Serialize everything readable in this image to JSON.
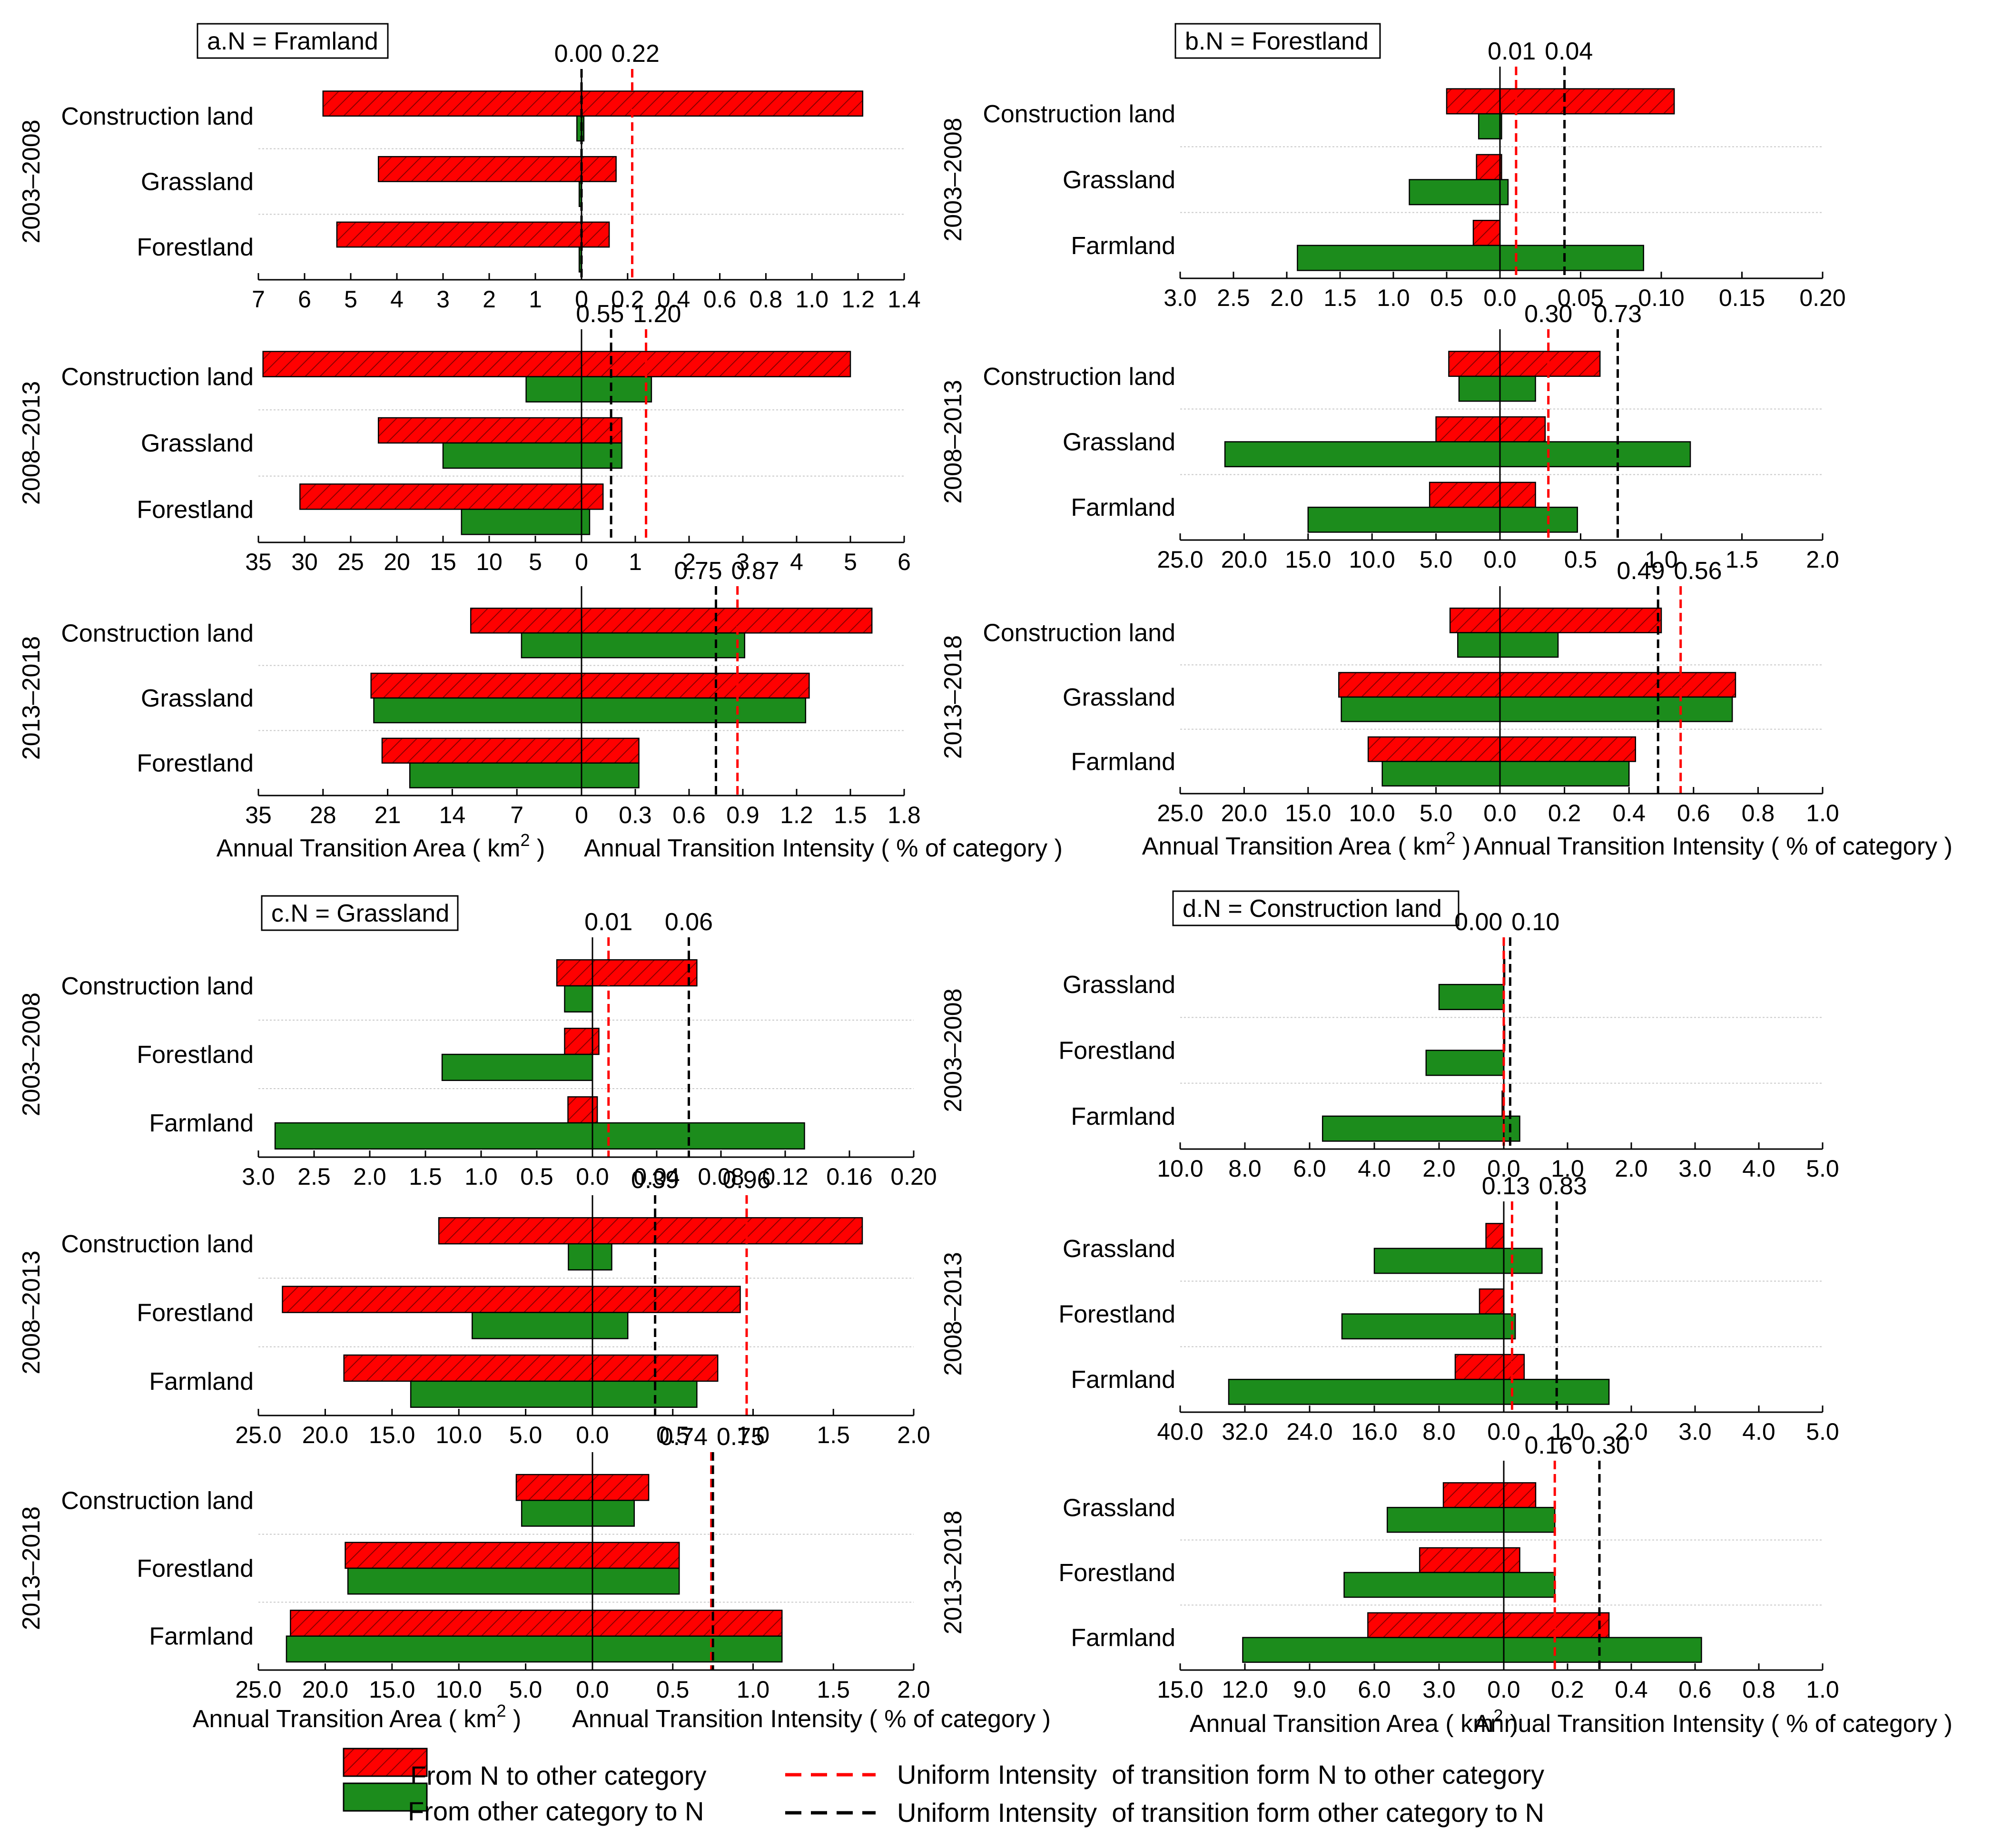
{
  "figure": {
    "legend": {
      "from_n": "From N to other category",
      "to_n": "From other category to N",
      "uniform_from": "Uniform Intensity  of transition form N to other category",
      "uniform_to": "Uniform Intensity  of transition form other category to N"
    },
    "area_axis_label": "Annual Transition Area ( km",
    "area_axis_unit_tail": " )",
    "intensity_axis_label": "Annual Transition Intensity ( % of category )",
    "colors": {
      "from_n": "#ff0000",
      "to_n": "#1c8c1c",
      "uniform_from": "#ff0000",
      "uniform_to": "#000000",
      "hatch": "#7a0000"
    }
  },
  "chart_data": [
    {
      "type": "bar",
      "title": "a.N = Framland",
      "area_ticks": [
        "7",
        "6",
        "5",
        "4",
        "3",
        "2",
        "1",
        "0"
      ],
      "area_max": 7,
      "intensity_ticks": [
        "0.2",
        "0.4",
        "0.6",
        "0.8",
        "1.0",
        "1.2",
        "1.4"
      ],
      "intensity_max": 1.4,
      "periods": [
        {
          "label": "2003–2008",
          "categories": [
            "Construction land",
            "Grassland",
            "Forestland"
          ],
          "area_from_n": [
            5.6,
            4.4,
            5.3
          ],
          "area_to_n": [
            0.1,
            0.05,
            0.05
          ],
          "intensity_from_n": [
            1.22,
            0.15,
            0.12
          ],
          "intensity_to_n": [
            0.01,
            0.0,
            0.0
          ],
          "uniform_from": 0.22,
          "uniform_to": 0.0,
          "uniform_labels": [
            "0.00",
            "0.22"
          ]
        },
        {
          "label": "2008–2013",
          "area_ticks": [
            "35",
            "30",
            "25",
            "20",
            "15",
            "10",
            "5",
            "0"
          ],
          "area_max": 35,
          "intensity_ticks": [
            "1",
            "2",
            "3",
            "4",
            "5",
            "6"
          ],
          "intensity_max": 6,
          "categories": [
            "Construction land",
            "Grassland",
            "Forestland"
          ],
          "area_from_n": [
            34.5,
            22.0,
            30.5
          ],
          "area_to_n": [
            6.0,
            15.0,
            13.0
          ],
          "intensity_from_n": [
            5.0,
            0.75,
            0.4
          ],
          "intensity_to_n": [
            1.3,
            0.75,
            0.15
          ],
          "uniform_from": 1.2,
          "uniform_to": 0.55,
          "uniform_labels": [
            "0.55",
            "1.20"
          ]
        },
        {
          "label": "2013–2018",
          "area_ticks": [
            "35",
            "28",
            "21",
            "14",
            "7",
            "0"
          ],
          "area_max": 35,
          "intensity_ticks": [
            "0.3",
            "0.6",
            "0.9",
            "1.2",
            "1.5",
            "1.8"
          ],
          "intensity_max": 1.8,
          "categories": [
            "Construction land",
            "Grassland",
            "Forestland"
          ],
          "area_from_n": [
            12.0,
            22.8,
            21.6
          ],
          "area_to_n": [
            6.5,
            22.5,
            18.6
          ],
          "intensity_from_n": [
            1.62,
            1.27,
            0.32
          ],
          "intensity_to_n": [
            0.91,
            1.25,
            0.32
          ],
          "uniform_from": 0.87,
          "uniform_to": 0.75,
          "uniform_labels": [
            "0.75",
            "0.87"
          ]
        }
      ]
    },
    {
      "type": "bar",
      "title": "b.N = Forestland",
      "periods": [
        {
          "label": "2003–2008",
          "area_ticks": [
            "3.0",
            "2.5",
            "2.0",
            "1.5",
            "1.0",
            "0.5",
            "0.0"
          ],
          "area_max": 3.0,
          "intensity_ticks": [
            "0.05",
            "0.10",
            "0.15",
            "0.20"
          ],
          "intensity_max": 0.2,
          "categories": [
            "Construction land",
            "Grassland",
            "Farmland"
          ],
          "area_from_n": [
            0.5,
            0.22,
            0.25
          ],
          "area_to_n": [
            0.2,
            0.85,
            1.9
          ],
          "intensity_from_n": [
            0.108,
            0.001,
            0.0
          ],
          "intensity_to_n": [
            0.001,
            0.005,
            0.089
          ],
          "uniform_from": 0.01,
          "uniform_to": 0.04,
          "uniform_labels": [
            "0.01",
            "0.04"
          ]
        },
        {
          "label": "2008–2013",
          "area_ticks": [
            "25.0",
            "20.0",
            "15.0",
            "10.0",
            "5.0",
            "0.0"
          ],
          "area_max": 25.0,
          "intensity_ticks": [
            "0.5",
            "1.0",
            "1.5",
            "2.0"
          ],
          "intensity_max": 2.0,
          "categories": [
            "Construction land",
            "Grassland",
            "Farmland"
          ],
          "area_from_n": [
            4.0,
            5.0,
            5.5
          ],
          "area_to_n": [
            3.2,
            21.5,
            15.0
          ],
          "intensity_from_n": [
            0.62,
            0.28,
            0.22
          ],
          "intensity_to_n": [
            0.22,
            1.18,
            0.48
          ],
          "uniform_from": 0.3,
          "uniform_to": 0.73,
          "uniform_labels": [
            "0.30",
            "0.73"
          ]
        },
        {
          "label": "2013–2018",
          "area_ticks": [
            "25.0",
            "20.0",
            "15.0",
            "10.0",
            "5.0",
            "0.0"
          ],
          "area_max": 25.0,
          "intensity_ticks": [
            "0.2",
            "0.4",
            "0.6",
            "0.8",
            "1.0"
          ],
          "intensity_max": 1.0,
          "categories": [
            "Construction land",
            "Grassland",
            "Farmland"
          ],
          "area_from_n": [
            3.9,
            12.6,
            10.3
          ],
          "area_to_n": [
            3.3,
            12.4,
            9.2
          ],
          "intensity_from_n": [
            0.5,
            0.73,
            0.42
          ],
          "intensity_to_n": [
            0.18,
            0.72,
            0.4
          ],
          "uniform_from": 0.56,
          "uniform_to": 0.49,
          "uniform_labels": [
            "0.49",
            "0.56"
          ]
        }
      ]
    },
    {
      "type": "bar",
      "title": "c.N = Grassland",
      "periods": [
        {
          "label": "2003–2008",
          "area_ticks": [
            "3.0",
            "2.5",
            "2.0",
            "1.5",
            "1.0",
            "0.5",
            "0.0"
          ],
          "area_max": 3.0,
          "intensity_ticks": [
            "0.04",
            "0.08",
            "0.12",
            "0.16",
            "0.20"
          ],
          "intensity_max": 0.2,
          "categories": [
            "Construction land",
            "Forestland",
            "Farmland"
          ],
          "area_from_n": [
            0.32,
            0.25,
            0.22
          ],
          "area_to_n": [
            0.25,
            1.35,
            2.85
          ],
          "intensity_from_n": [
            0.065,
            0.004,
            0.003
          ],
          "intensity_to_n": [
            0.0,
            0.0,
            0.132
          ],
          "uniform_from": 0.01,
          "uniform_to": 0.06,
          "uniform_labels": [
            "0.01",
            "0.06"
          ]
        },
        {
          "label": "2008–2013",
          "area_ticks": [
            "25.0",
            "20.0",
            "15.0",
            "10.0",
            "5.0",
            "0.0"
          ],
          "area_max": 25.0,
          "intensity_ticks": [
            "0.5",
            "1.0",
            "1.5",
            "2.0"
          ],
          "intensity_max": 2.0,
          "categories": [
            "Construction land",
            "Forestland",
            "Farmland"
          ],
          "area_from_n": [
            11.5,
            23.2,
            18.6
          ],
          "area_to_n": [
            1.8,
            9.0,
            13.6
          ],
          "intensity_from_n": [
            1.68,
            0.92,
            0.78
          ],
          "intensity_to_n": [
            0.12,
            0.22,
            0.65
          ],
          "uniform_from": 0.96,
          "uniform_to": 0.39,
          "uniform_labels": [
            "0.39",
            "0.96"
          ]
        },
        {
          "label": "2013–2018",
          "area_ticks": [
            "25.0",
            "20.0",
            "15.0",
            "10.0",
            "5.0",
            "0.0"
          ],
          "area_max": 25.0,
          "intensity_ticks": [
            "0.5",
            "1.0",
            "1.5",
            "2.0"
          ],
          "intensity_max": 2.0,
          "categories": [
            "Construction land",
            "Forestland",
            "Farmland"
          ],
          "area_from_n": [
            5.7,
            18.5,
            22.6
          ],
          "area_to_n": [
            5.3,
            18.3,
            22.9
          ],
          "intensity_from_n": [
            0.35,
            0.54,
            1.18
          ],
          "intensity_to_n": [
            0.26,
            0.54,
            1.18
          ],
          "uniform_from": 0.74,
          "uniform_to": 0.75,
          "uniform_labels": [
            "0.74",
            "0.75"
          ]
        }
      ]
    },
    {
      "type": "bar",
      "title": "d.N = Construction land",
      "periods": [
        {
          "label": "2003–2008",
          "area_ticks": [
            "10.0",
            "8.0",
            "6.0",
            "4.0",
            "2.0",
            "0.0"
          ],
          "area_max": 10.0,
          "intensity_ticks": [
            "1.0",
            "2.0",
            "3.0",
            "4.0",
            "5.0"
          ],
          "intensity_max": 5.0,
          "categories": [
            "Grassland",
            "Forestland",
            "Farmland"
          ],
          "area_from_n": [
            0.0,
            0.0,
            0.05
          ],
          "area_to_n": [
            2.0,
            2.4,
            5.6
          ],
          "intensity_from_n": [
            0.0,
            0.0,
            0.0
          ],
          "intensity_to_n": [
            0.0,
            0.0,
            0.25
          ],
          "uniform_from": 0.0,
          "uniform_to": 0.1,
          "uniform_labels": [
            "0.00",
            "0.10"
          ]
        },
        {
          "label": "2008–2013",
          "area_ticks": [
            "40.0",
            "32.0",
            "24.0",
            "16.0",
            "8.0",
            "0.0"
          ],
          "area_max": 40.0,
          "intensity_ticks": [
            "1.0",
            "2.0",
            "3.0",
            "4.0",
            "5.0"
          ],
          "intensity_max": 5.0,
          "categories": [
            "Grassland",
            "Forestland",
            "Farmland"
          ],
          "area_from_n": [
            2.2,
            3.0,
            6.0
          ],
          "area_to_n": [
            16.0,
            20.0,
            34.0
          ],
          "intensity_from_n": [
            0.0,
            0.0,
            0.32
          ],
          "intensity_to_n": [
            0.6,
            0.18,
            1.65
          ],
          "uniform_from": 0.13,
          "uniform_to": 0.83,
          "uniform_labels": [
            "0.13",
            "0.83"
          ]
        },
        {
          "label": "2013–2018",
          "area_ticks": [
            "15.0",
            "12.0",
            "9.0",
            "6.0",
            "3.0",
            "0.0"
          ],
          "area_max": 15.0,
          "intensity_ticks": [
            "0.2",
            "0.4",
            "0.6",
            "0.8",
            "1.0"
          ],
          "intensity_max": 1.0,
          "categories": [
            "Grassland",
            "Forestland",
            "Farmland"
          ],
          "area_from_n": [
            2.8,
            3.9,
            6.3
          ],
          "area_to_n": [
            5.4,
            7.4,
            12.1
          ],
          "intensity_from_n": [
            0.1,
            0.05,
            0.33
          ],
          "intensity_to_n": [
            0.16,
            0.16,
            0.62
          ],
          "uniform_from": 0.16,
          "uniform_to": 0.3,
          "uniform_labels": [
            "0.16",
            "0.30"
          ]
        }
      ]
    }
  ]
}
